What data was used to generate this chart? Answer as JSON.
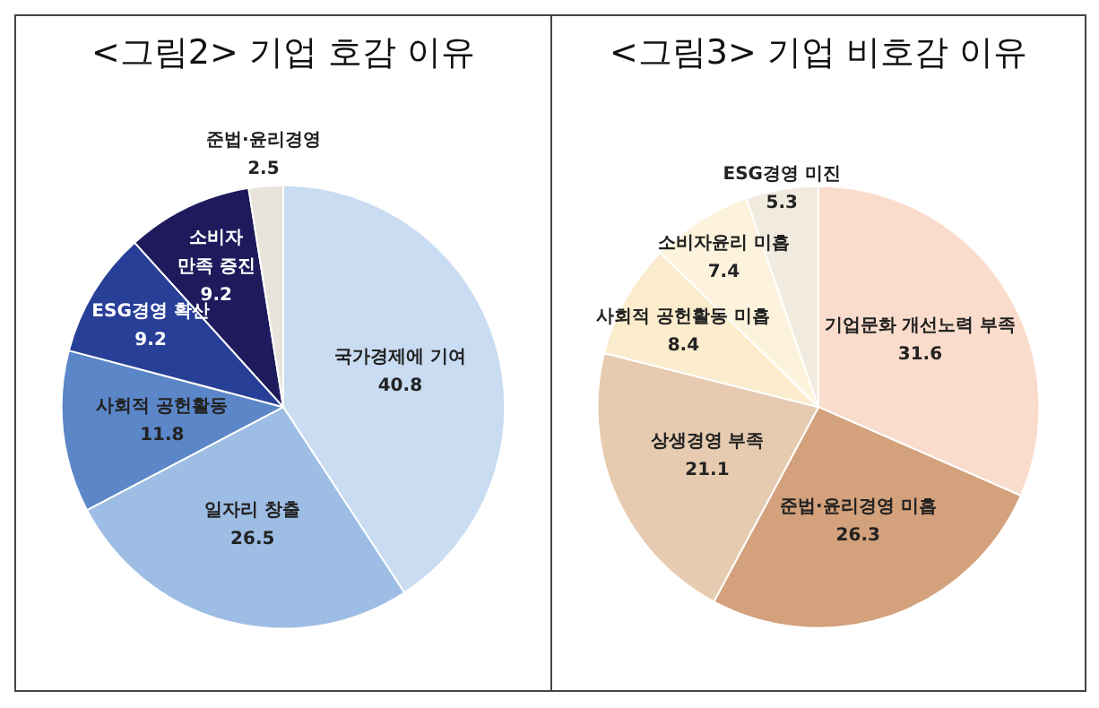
{
  "chart_data": [
    {
      "type": "pie",
      "title": "<그림2> 기업 호감 이유",
      "categories": [
        "국가경제에 기여",
        "일자리 창출",
        "사회적 공헌활동",
        "ESG경영 확산",
        "소비자\n만족 증진",
        "준법·윤리경영"
      ],
      "values": [
        40.8,
        26.5,
        11.8,
        9.2,
        9.2,
        2.5
      ],
      "colors": [
        "#c9dcf2",
        "#9dbde4",
        "#5b86c8",
        "#283f98",
        "#1e1a5c",
        "#e8e4dc"
      ],
      "data_labels": true,
      "legend": false
    },
    {
      "type": "pie",
      "title": "<그림3> 기업 비호감 이유",
      "categories": [
        "기업문화 개선노력 부족",
        "준법·윤리경영 미흡",
        "상생경영 부족",
        "사회적 공헌활동 미흡",
        "소비자윤리 미흡",
        "ESG경영 미진"
      ],
      "values": [
        31.6,
        26.3,
        21.1,
        8.4,
        7.4,
        5.3
      ],
      "colors": [
        "#fadccc",
        "#d3a17b",
        "#e6cbb0",
        "#fbeccd",
        "#fdf3dc",
        "#f1ebdf"
      ],
      "data_labels": true,
      "legend": false
    }
  ]
}
